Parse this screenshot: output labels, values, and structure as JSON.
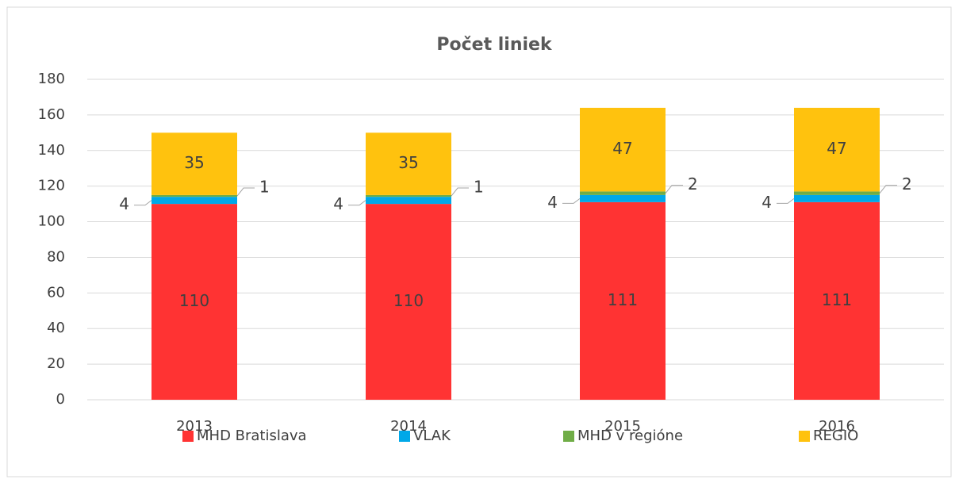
{
  "chart_data": {
    "type": "stacked_bar",
    "title": "Počet liniek",
    "categories": [
      "2013",
      "2014",
      "2015",
      "2016"
    ],
    "series": [
      {
        "name": "MHD Bratislava",
        "color": "#ff3333",
        "values": [
          110,
          110,
          111,
          111
        ]
      },
      {
        "name": "VLAK",
        "color": "#00a8e8",
        "values": [
          4,
          4,
          4,
          4
        ]
      },
      {
        "name": "MHD v regióne",
        "color": "#70ad47",
        "values": [
          1,
          1,
          2,
          2
        ]
      },
      {
        "name": "REGIO",
        "color": "#ffc20e",
        "values": [
          35,
          35,
          47,
          47
        ]
      }
    ],
    "ylim": [
      0,
      180
    ],
    "yticks": [
      0,
      20,
      40,
      60,
      80,
      100,
      120,
      140,
      160,
      180
    ],
    "grid": true,
    "legend": "bottom"
  }
}
